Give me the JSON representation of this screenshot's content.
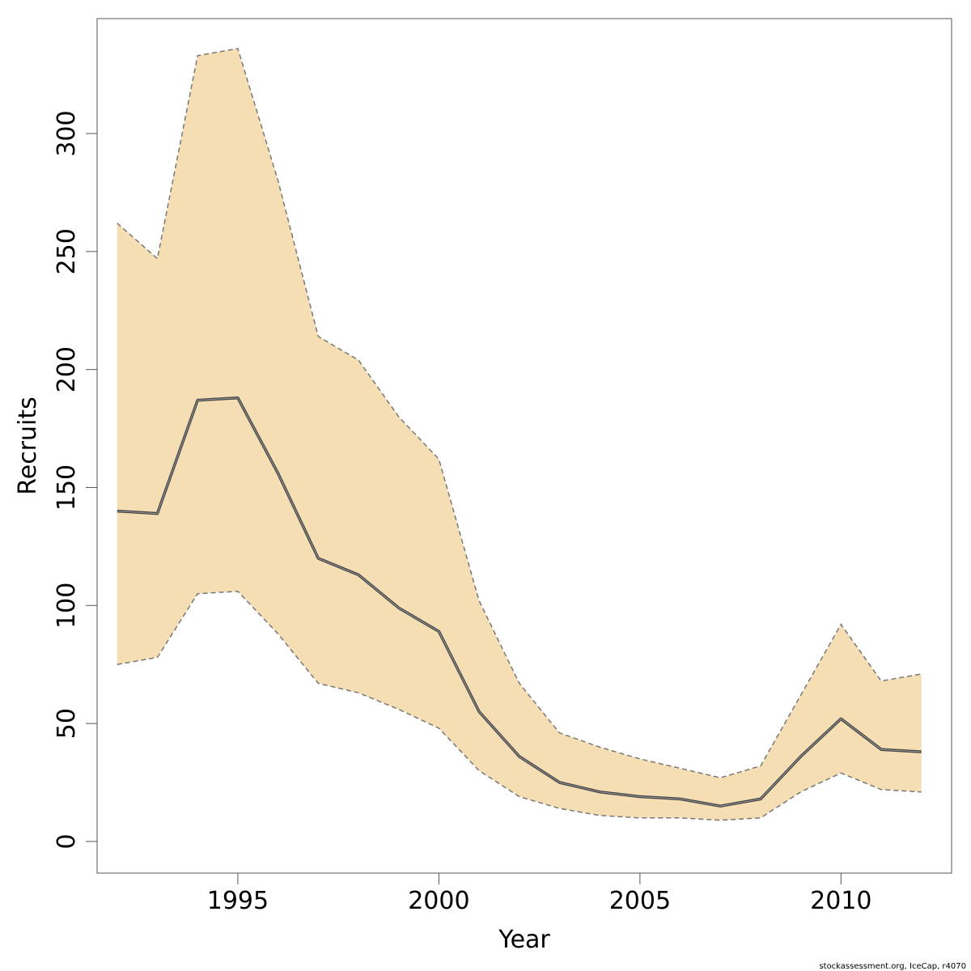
{
  "chart_data": {
    "type": "area",
    "xlabel": "Year",
    "ylabel": "Recruits",
    "xlim": [
      1991.5,
      2012.75
    ],
    "ylim": [
      -13.4,
      348.7
    ],
    "x_ticks": [
      1995,
      2000,
      2005,
      2010
    ],
    "y_ticks": [
      0,
      50,
      100,
      150,
      200,
      250,
      300
    ],
    "grid": false,
    "x": [
      1992,
      1993,
      1994,
      1995,
      1996,
      1997,
      1998,
      1999,
      2000,
      2001,
      2002,
      2003,
      2004,
      2005,
      2006,
      2007,
      2008,
      2009,
      2010,
      2011,
      2012
    ],
    "series": [
      {
        "values": [
          140,
          139,
          187,
          188,
          156,
          120,
          113,
          99,
          89,
          55,
          36,
          25,
          21,
          19,
          18,
          15,
          18,
          36,
          52,
          39,
          38
        ]
      },
      {
        "values": [
          262,
          247,
          333,
          336,
          280,
          214,
          204,
          180,
          162,
          102,
          67,
          46,
          40,
          35,
          31,
          27,
          32,
          62,
          92,
          68,
          71
        ]
      },
      {
        "values": [
          75,
          78,
          105,
          106,
          88,
          67,
          63,
          56,
          48,
          30,
          19,
          14,
          11,
          10,
          10,
          9,
          10,
          21,
          29,
          22,
          21
        ]
      }
    ],
    "colors": {
      "band_fill": "#F5DEB3",
      "estimate_line": "#444444",
      "bound_line": "#777777",
      "axis": "#555555"
    }
  },
  "footer": {
    "credit": "stockassessment.org, IceCap, r4070"
  }
}
